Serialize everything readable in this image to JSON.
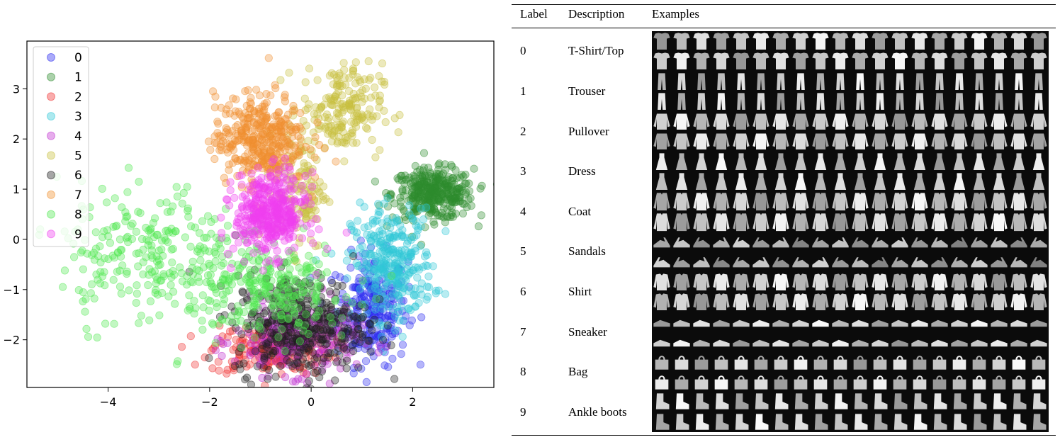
{
  "chart_data": {
    "type": "scatter",
    "title": "",
    "xlabel": "",
    "ylabel": "",
    "xlim": [
      -5.6,
      3.6
    ],
    "ylim": [
      -2.95,
      3.95
    ],
    "xticks": [
      -4,
      -2,
      0,
      2
    ],
    "yticks": [
      -2,
      -1,
      0,
      1,
      2,
      3
    ],
    "xtick_labels": [
      "−4",
      "−2",
      "0",
      "2"
    ],
    "ytick_labels": [
      "−2",
      "−1",
      "0",
      "1",
      "2",
      "3"
    ],
    "legend_position": "upper left",
    "grid": false,
    "series": [
      {
        "name": "0",
        "color": "#2b2bf0",
        "clusters": [
          {
            "cx": 1.2,
            "cy": -1.4,
            "sx": 0.35,
            "sy": 0.55,
            "n": 260
          }
        ]
      },
      {
        "name": "1",
        "color": "#2e8b2e",
        "clusters": [
          {
            "cx": 2.4,
            "cy": 0.9,
            "sx": 0.4,
            "sy": 0.25,
            "n": 360
          }
        ]
      },
      {
        "name": "2",
        "color": "#f03030",
        "clusters": [
          {
            "cx": -0.8,
            "cy": -2.2,
            "sx": 0.6,
            "sy": 0.25,
            "n": 200
          }
        ]
      },
      {
        "name": "3",
        "color": "#30c8d8",
        "clusters": [
          {
            "cx": 1.6,
            "cy": -0.5,
            "sx": 0.4,
            "sy": 0.55,
            "n": 320
          }
        ]
      },
      {
        "name": "4",
        "color": "#c030d0",
        "clusters": [
          {
            "cx": -0.3,
            "cy": -2.0,
            "sx": 0.6,
            "sy": 0.35,
            "n": 260
          }
        ]
      },
      {
        "name": "5",
        "color": "#c8c040",
        "clusters": [
          {
            "cx": 0.6,
            "cy": 2.6,
            "sx": 0.4,
            "sy": 0.45,
            "n": 200
          },
          {
            "cx": -0.2,
            "cy": 1.0,
            "sx": 0.25,
            "sy": 0.6,
            "n": 120
          }
        ]
      },
      {
        "name": "6",
        "color": "#202020",
        "clusters": [
          {
            "cx": -0.2,
            "cy": -1.7,
            "sx": 0.65,
            "sy": 0.5,
            "n": 420
          }
        ]
      },
      {
        "name": "7",
        "color": "#f09030",
        "clusters": [
          {
            "cx": -1.0,
            "cy": 2.0,
            "sx": 0.45,
            "sy": 0.45,
            "n": 380
          }
        ]
      },
      {
        "name": "8",
        "color": "#50e850",
        "clusters": [
          {
            "cx": -3.2,
            "cy": -0.3,
            "sx": 0.9,
            "sy": 0.7,
            "n": 260
          },
          {
            "cx": -0.8,
            "cy": -1.0,
            "sx": 0.8,
            "sy": 0.45,
            "n": 260
          }
        ]
      },
      {
        "name": "9",
        "color": "#f040f0",
        "clusters": [
          {
            "cx": -0.8,
            "cy": 0.5,
            "sx": 0.35,
            "sy": 0.4,
            "n": 420
          }
        ]
      }
    ]
  },
  "table": {
    "headers": [
      "Label",
      "Description",
      "Examples"
    ],
    "rows": [
      {
        "label": "0",
        "description": "T-Shirt/Top"
      },
      {
        "label": "1",
        "description": "Trouser"
      },
      {
        "label": "2",
        "description": "Pullover"
      },
      {
        "label": "3",
        "description": "Dress"
      },
      {
        "label": "4",
        "description": "Coat"
      },
      {
        "label": "5",
        "description": "Sandals"
      },
      {
        "label": "6",
        "description": "Shirt"
      },
      {
        "label": "7",
        "description": "Sneaker"
      },
      {
        "label": "8",
        "description": "Bag"
      },
      {
        "label": "9",
        "description": "Ankle boots"
      }
    ],
    "examples_per_row": 20
  }
}
